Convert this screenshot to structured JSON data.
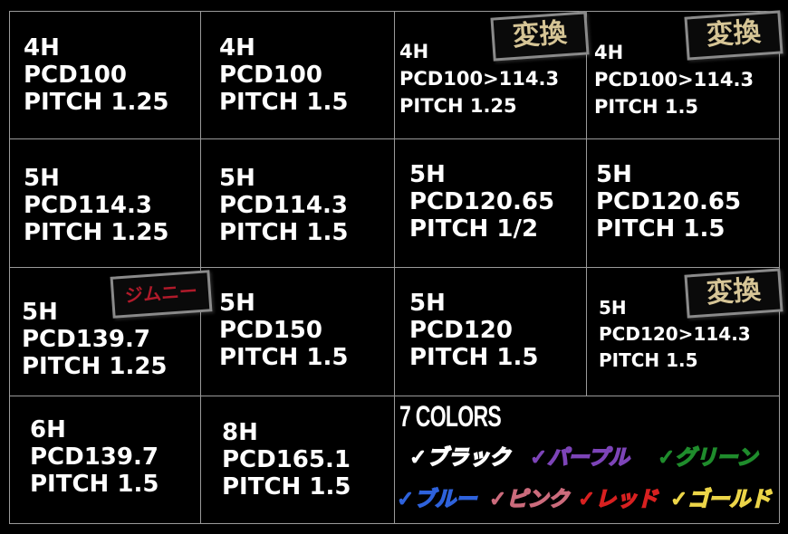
{
  "cells": [
    {
      "lines": [
        "4H",
        "PCD100",
        "PITCH 1.25"
      ]
    },
    {
      "lines": [
        "4H",
        "PCD100",
        "PITCH 1.5"
      ]
    },
    {
      "lines": [
        "4H",
        "PCD100>114.3",
        "PITCH 1.25"
      ],
      "badge": "変換"
    },
    {
      "lines": [
        "4H",
        "PCD100>114.3",
        "PITCH 1.5"
      ],
      "badge": "変換"
    },
    {
      "lines": [
        "5H",
        "PCD114.3",
        "PITCH 1.25"
      ]
    },
    {
      "lines": [
        "5H",
        "PCD114.3",
        "PITCH 1.5"
      ]
    },
    {
      "lines": [
        "5H",
        "PCD120.65",
        "PITCH 1/2"
      ]
    },
    {
      "lines": [
        "5H",
        "PCD120.65",
        "PITCH 1.5"
      ]
    },
    {
      "lines": [
        "5H",
        "PCD139.7",
        "PITCH 1.25"
      ],
      "badge": "ジムニー"
    },
    {
      "lines": [
        "5H",
        "PCD150",
        "PITCH 1.5"
      ]
    },
    {
      "lines": [
        "5H",
        "PCD120",
        "PITCH 1.5"
      ]
    },
    {
      "lines": [
        "5H",
        "PCD120>114.3",
        "PITCH 1.5"
      ],
      "badge": "変換"
    },
    {
      "lines": [
        "6H",
        "PCD139.7",
        "PITCH 1.5"
      ]
    },
    {
      "lines": [
        "8H",
        "PCD165.1",
        "PITCH 1.5"
      ]
    }
  ],
  "colors_panel": {
    "title": "7 COLORS",
    "check": "✓",
    "items": [
      {
        "label": "ブラック",
        "color": "#ffffff"
      },
      {
        "label": "パープル",
        "color": "#7d44b8"
      },
      {
        "label": "グリーン",
        "color": "#1f8c2c"
      },
      {
        "label": "ブルー",
        "color": "#2e62dc"
      },
      {
        "label": "ピンク",
        "color": "#cc6b7c"
      },
      {
        "label": "レッド",
        "color": "#d82020"
      },
      {
        "label": "ゴールド",
        "color": "#ecd548"
      }
    ]
  }
}
